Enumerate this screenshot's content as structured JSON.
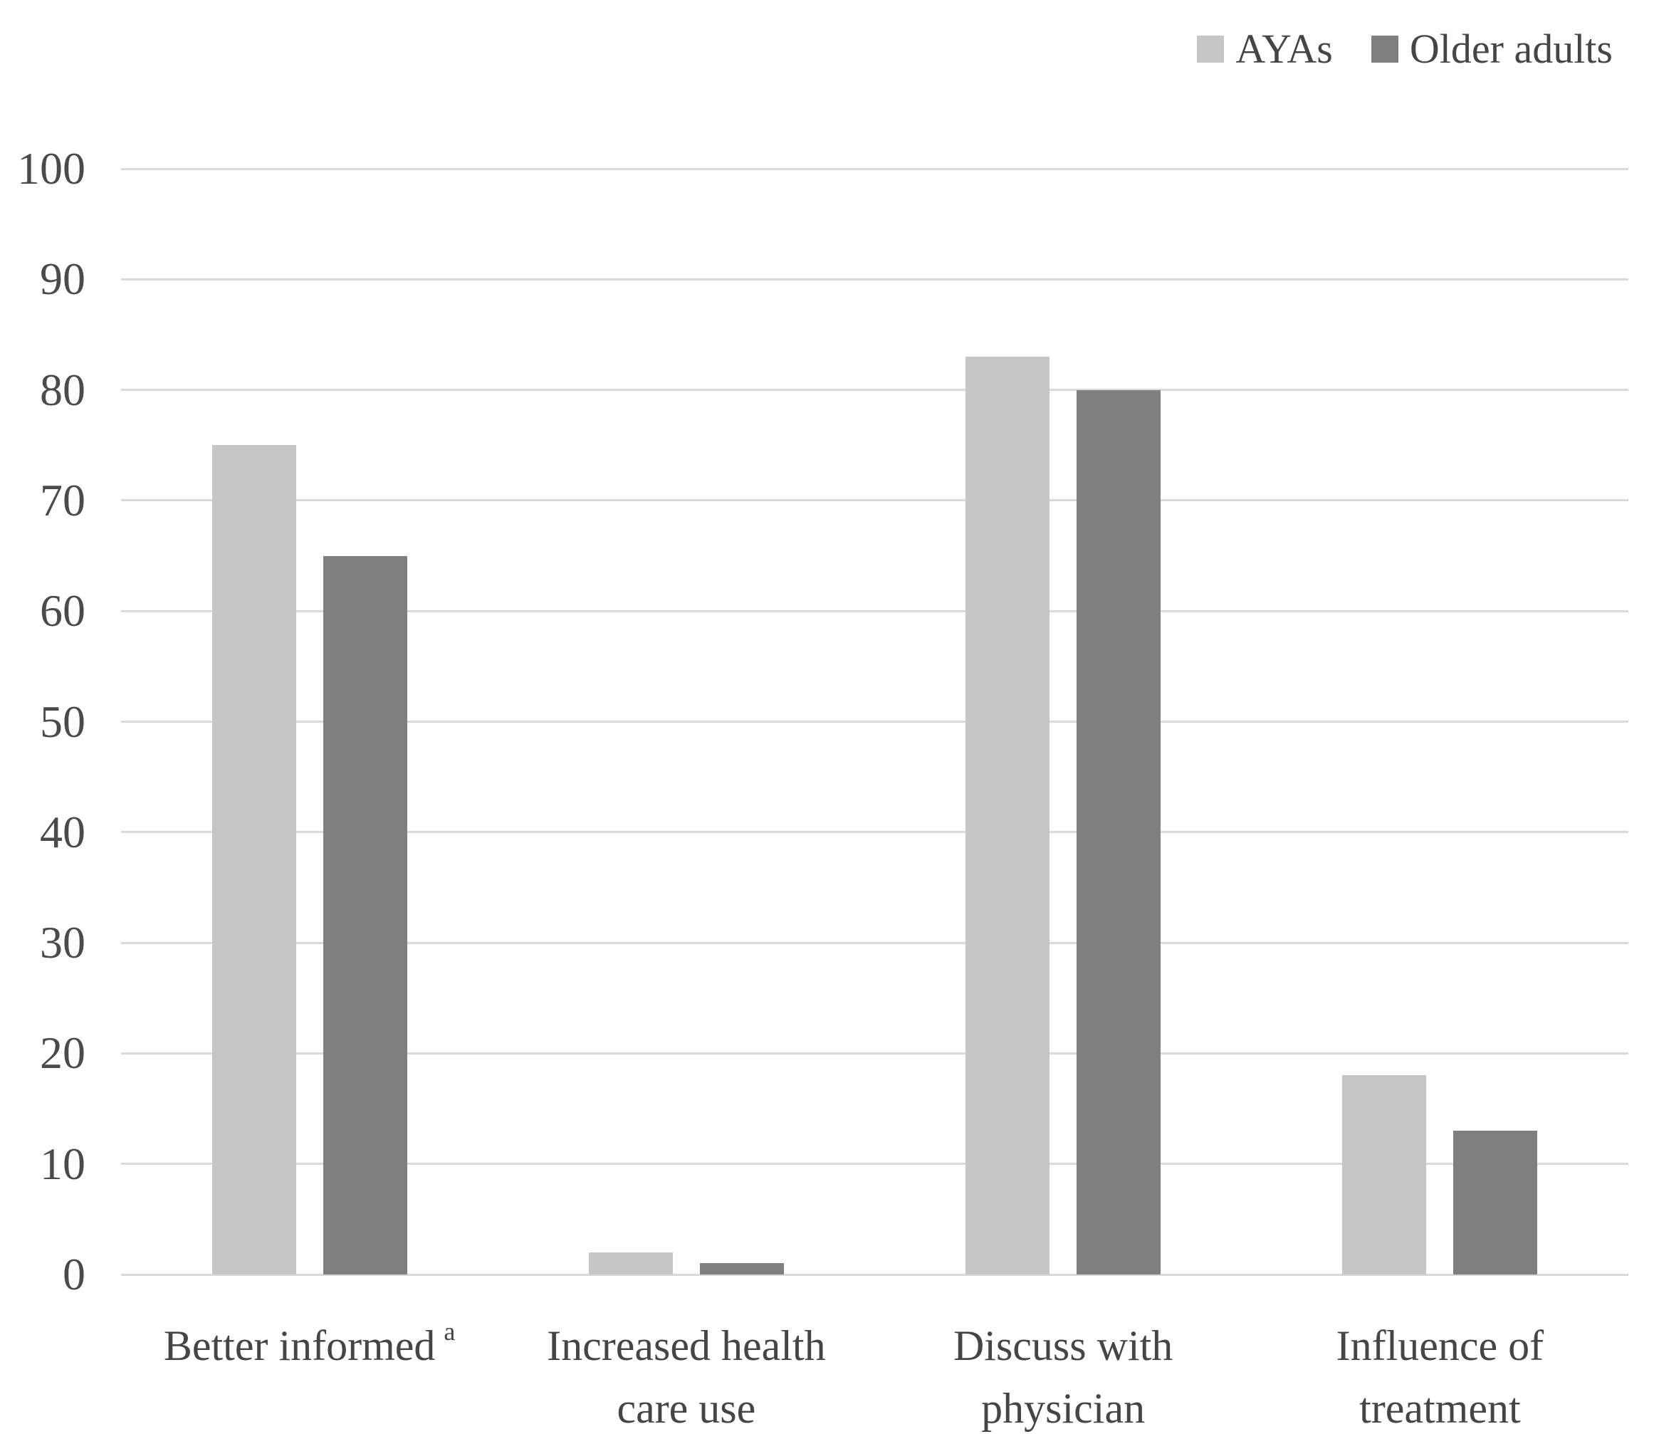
{
  "chart_data": {
    "type": "bar",
    "title": "",
    "xlabel": "",
    "ylabel": "",
    "categories": [
      "Better informed",
      "Increased health\ncare use",
      "Discuss with\nphysician",
      "Influence of\ntreatment"
    ],
    "category_superscripts": [
      "a",
      "",
      "",
      ""
    ],
    "series": [
      {
        "name": "AYAs",
        "color": "#c6c6c6",
        "values": [
          75,
          2,
          83,
          18
        ]
      },
      {
        "name": "Older adults",
        "color": "#7f7f7f",
        "values": [
          65,
          1,
          80,
          13
        ]
      }
    ],
    "ylim": [
      0,
      100
    ],
    "yticks": [
      0,
      10,
      20,
      30,
      40,
      50,
      60,
      70,
      80,
      90,
      100
    ],
    "grid": "horizontal",
    "gridline_color": "#d9d9d9",
    "background_color": "#ffffff",
    "text_color": "#454545",
    "legend_position": "top-right"
  }
}
